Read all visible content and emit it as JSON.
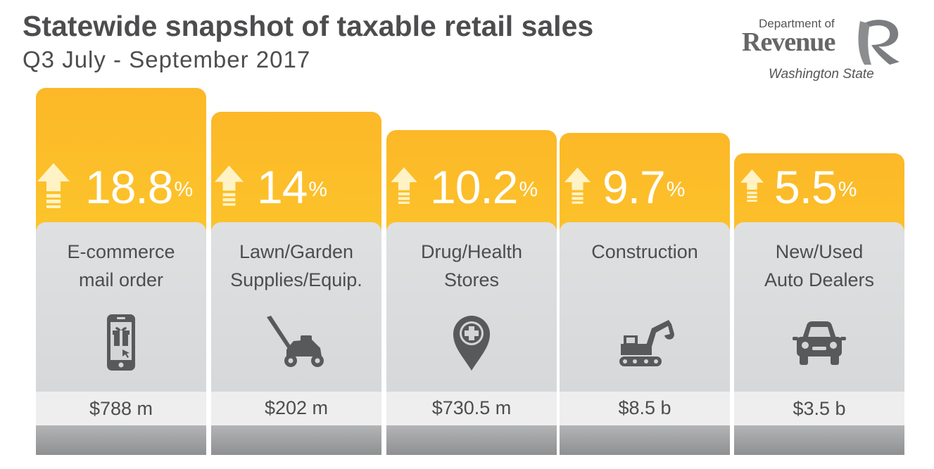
{
  "title": "Statewide snapshot of taxable retail sales",
  "subtitle": "Q3 July - September 2017",
  "logo": {
    "line1": "Department of",
    "line2": "Revenue",
    "line3": "Washington State"
  },
  "colors": {
    "accent_top": "#fcb828",
    "accent_bottom": "#fde27a",
    "card_grey": "#d5d7d8",
    "text": "#4d4d4f"
  },
  "chart_data": {
    "type": "bar",
    "title": "Statewide snapshot of taxable retail sales",
    "subtitle": "Q3 July - September 2017",
    "unit": "%",
    "categories": [
      "E-commerce mail order",
      "Lawn/Garden Supplies/Equip.",
      "Drug/Health Stores",
      "Construction",
      "New/Used Auto Dealers"
    ],
    "values": [
      18.8,
      14,
      10.2,
      9.7,
      5.5
    ],
    "items": [
      {
        "pct_label": "18.8",
        "unit": "%",
        "label_lines": [
          "E-commerce",
          "mail order"
        ],
        "amount": "$788 m",
        "icon": "smartphone-gift-icon"
      },
      {
        "pct_label": "14",
        "unit": "%",
        "label_lines": [
          "Lawn/Garden",
          "Supplies/Equip."
        ],
        "amount": "$202 m",
        "icon": "lawn-mower-icon"
      },
      {
        "pct_label": "10.2",
        "unit": "%",
        "label_lines": [
          "Drug/Health",
          "Stores"
        ],
        "amount": "$730.5 m",
        "icon": "health-pin-icon"
      },
      {
        "pct_label": "9.7",
        "unit": "%",
        "label_lines": [
          "Construction"
        ],
        "amount": "$8.5 b",
        "icon": "excavator-icon"
      },
      {
        "pct_label": "5.5",
        "unit": "%",
        "label_lines": [
          "New/Used",
          "Auto Dealers"
        ],
        "amount": "$3.5 b",
        "icon": "car-icon"
      }
    ],
    "direction": "up",
    "ylim": [
      0,
      18.8
    ]
  }
}
